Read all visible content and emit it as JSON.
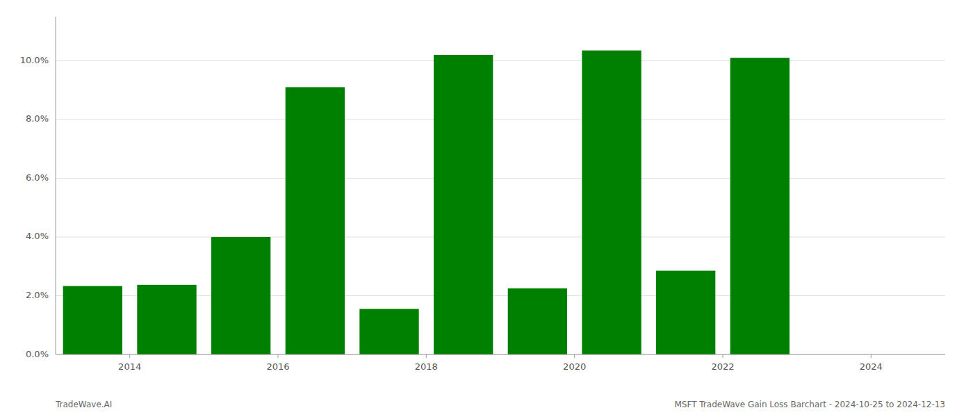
{
  "chart_data": {
    "type": "bar",
    "x": [
      2013.5,
      2014.5,
      2015.5,
      2016.5,
      2017.5,
      2018.5,
      2019.5,
      2020.5,
      2021.5,
      2022.5
    ],
    "values": [
      0.0233,
      0.0237,
      0.04,
      0.091,
      0.0155,
      0.102,
      0.0225,
      0.1035,
      0.0285,
      0.101
    ],
    "color": "#008000",
    "ylim": [
      0,
      0.115
    ],
    "yticks": [
      {
        "value": 0.0,
        "label": "0.0%"
      },
      {
        "value": 0.02,
        "label": "2.0%"
      },
      {
        "value": 0.04,
        "label": "4.0%"
      },
      {
        "value": 0.06,
        "label": "6.0%"
      },
      {
        "value": 0.08,
        "label": "8.0%"
      },
      {
        "value": 0.1,
        "label": "10.0%"
      }
    ],
    "xlim": [
      2013.0,
      2025.0
    ],
    "xticks": [
      2014,
      2016,
      2018,
      2020,
      2022,
      2024
    ],
    "grid": true,
    "annotations": [
      "TradeWave.AI",
      "MSFT TradeWave Gain Loss Barchart - 2024-10-25 to 2024-12-13"
    ]
  }
}
